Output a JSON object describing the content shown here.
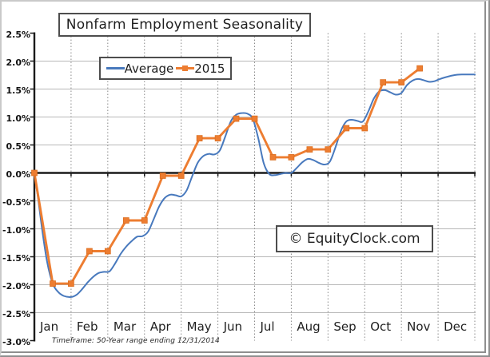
{
  "chart_data": {
    "type": "line",
    "title": "Nonfarm Employment Seasonality",
    "watermark": "© EquityClock.com",
    "footnote": "Timeframe: 50-Year range ending 12/31/2014",
    "legend_position": "top-left-inside",
    "x_axis": {
      "unit": "month",
      "tick_labels": [
        "Jan",
        "Feb",
        "Mar",
        "Apr",
        "May",
        "Jun",
        "Jul",
        "Aug",
        "Sep",
        "Oct",
        "Nov",
        "Dec"
      ],
      "range_month_units": [
        0,
        12
      ]
    },
    "y_axis": {
      "unit": "%",
      "min": -3.0,
      "max": 2.5,
      "tick_step": 0.5,
      "tick_values": [
        2.5,
        2.0,
        1.5,
        1.0,
        0.5,
        0.0,
        -0.5,
        -1.0,
        -1.5,
        -2.0,
        -2.5,
        -3.0
      ],
      "tick_labels": [
        "2.5%",
        "2.0%",
        "1.5%",
        "1.0%",
        "0.5%",
        "0.0%",
        "-0.5%",
        "-1.0%",
        "-1.5%",
        "-2.0%",
        "-2.5%",
        "-3.0%"
      ],
      "gridline_values": [
        2.0,
        1.5,
        1.0,
        0.5,
        -0.5,
        -1.0,
        -1.5,
        -2.0,
        -2.5
      ],
      "zero_axis_emphasized": true
    },
    "grid": {
      "horizontal": true,
      "vertical_dashed_at_month_boundaries": true
    },
    "series": [
      {
        "name": "Average",
        "style": "smooth_line",
        "color": "#4879BD",
        "x_month_units": [
          0,
          0.1,
          0.22,
          0.35,
          0.5,
          0.65,
          0.8,
          1.0,
          1.15,
          1.3,
          1.45,
          1.6,
          1.75,
          1.9,
          2.05,
          2.2,
          2.35,
          2.5,
          2.65,
          2.8,
          2.95,
          3.1,
          3.25,
          3.4,
          3.55,
          3.7,
          3.85,
          4.0,
          4.15,
          4.3,
          4.45,
          4.6,
          4.75,
          4.9,
          5.05,
          5.2,
          5.35,
          5.5,
          5.65,
          5.8,
          5.95,
          6.1,
          6.25,
          6.4,
          6.55,
          6.7,
          6.85,
          7.0,
          7.15,
          7.3,
          7.45,
          7.6,
          7.75,
          7.9,
          8.05,
          8.2,
          8.35,
          8.5,
          8.65,
          8.8,
          8.95,
          9.1,
          9.25,
          9.4,
          9.55,
          9.7,
          9.85,
          10.0,
          10.15,
          10.3,
          10.45,
          10.6,
          10.75,
          10.9,
          11.05,
          11.25,
          11.45,
          11.65,
          11.85,
          12.0
        ],
        "y_percent": [
          0,
          -0.45,
          -1.05,
          -1.6,
          -1.98,
          -2.13,
          -2.2,
          -2.22,
          -2.18,
          -2.08,
          -1.96,
          -1.86,
          -1.79,
          -1.77,
          -1.76,
          -1.62,
          -1.45,
          -1.32,
          -1.22,
          -1.14,
          -1.13,
          -1.05,
          -0.83,
          -0.6,
          -0.45,
          -0.39,
          -0.4,
          -0.42,
          -0.31,
          -0.06,
          0.18,
          0.3,
          0.34,
          0.33,
          0.4,
          0.65,
          0.92,
          1.04,
          1.07,
          1.06,
          0.97,
          0.62,
          0.17,
          -0.02,
          -0.04,
          -0.02,
          0.0,
          0.0,
          0.09,
          0.19,
          0.25,
          0.23,
          0.18,
          0.15,
          0.2,
          0.45,
          0.75,
          0.92,
          0.95,
          0.93,
          0.92,
          1.1,
          1.33,
          1.46,
          1.48,
          1.44,
          1.4,
          1.43,
          1.57,
          1.65,
          1.68,
          1.66,
          1.63,
          1.64,
          1.68,
          1.72,
          1.75,
          1.76,
          1.76,
          1.76
        ]
      },
      {
        "name": "2015",
        "style": "line_with_square_markers",
        "color": "#ED7D31",
        "marker": "square",
        "x_month_units": [
          0,
          0.5,
          1,
          1.5,
          2,
          2.5,
          3,
          3.5,
          4,
          4.5,
          5,
          5.5,
          6,
          6.5,
          7,
          7.5,
          8,
          8.5,
          9,
          9.5,
          10,
          10.5
        ],
        "y_percent": [
          0,
          -1.98,
          -1.98,
          -1.4,
          -1.4,
          -0.85,
          -0.85,
          -0.05,
          -0.05,
          0.62,
          0.62,
          0.97,
          0.97,
          0.28,
          0.28,
          0.42,
          0.42,
          0.8,
          0.8,
          1.62,
          1.62,
          1.87
        ]
      }
    ],
    "colors": {
      "axis": "#1a1a1a",
      "h_gridline": "#b8b8b8",
      "v_gridline": "#8a8a8a",
      "text": "#1f1f1f"
    }
  }
}
